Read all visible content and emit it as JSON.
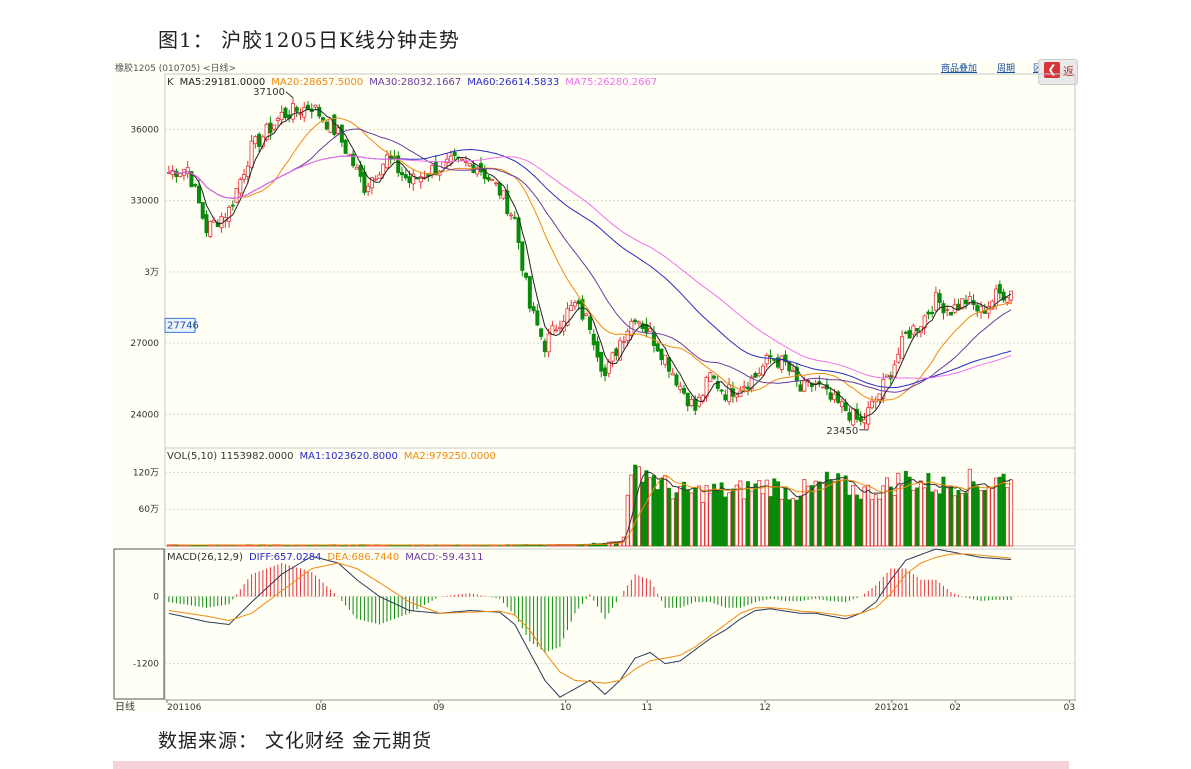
{
  "figure_title": "图1：  沪胶1205日K线分钟走势",
  "source_text": "数据来源：  文化财经    金元期货",
  "widget": {
    "symbol_label": "橡胶1205 (010705) <日线>",
    "links": [
      "商品叠加",
      "周期",
      "区"
    ],
    "back_button_label": "返",
    "price_legend": {
      "k": "K",
      "ma5": "MA5:29181.0000",
      "ma20": "MA20:28657.5000",
      "ma30": "MA30:28032.1667",
      "ma60": "MA60:26614.5833",
      "ma75": "MA75:26280.2667"
    },
    "vol_legend": {
      "vol": "VOL(5,10)  1153982.0000",
      "ma1": "MA1:1023620.8000",
      "ma2": "MA2:979250.0000"
    },
    "macd_legend": {
      "macd": "MACD(26,12,9)",
      "diff": "DIFF:657.0284",
      "dea": "DEA:686.7440",
      "macd_val": "MACD:-59.4311"
    },
    "cursor_price": "27746",
    "high_label": "37100",
    "low_label": "23450",
    "period_label": "日线",
    "colors": {
      "up": "#e8303a",
      "down": "#0a8a0a",
      "ma5": "#222222",
      "ma20": "#f08a10",
      "ma30": "#6a3aa0",
      "ma60": "#2a2ac8",
      "ma75": "#f070f0",
      "vol_ma1": "#333333",
      "vol_ma2": "#f08a10",
      "diff": "#2a3a5a",
      "dea": "#f08a10"
    }
  },
  "chart_data": [
    {
      "type": "candlestick",
      "price_ticks": [
        "36000",
        "33000",
        "3万",
        "27000",
        "24000"
      ],
      "price_tick_values": [
        36000,
        33000,
        30000,
        27000,
        24000
      ],
      "ylim": [
        23000,
        38000
      ],
      "x_labels": [
        "201106",
        "08",
        "09",
        "10",
        "11",
        "12",
        "201201",
        "02",
        "03"
      ],
      "close_path": [
        [
          0,
          34200
        ],
        [
          5,
          34400
        ],
        [
          10,
          31800
        ],
        [
          16,
          32600
        ],
        [
          22,
          35200
        ],
        [
          30,
          36600
        ],
        [
          38,
          37000
        ],
        [
          45,
          35800
        ],
        [
          52,
          33600
        ],
        [
          58,
          34800
        ],
        [
          64,
          33800
        ],
        [
          70,
          34300
        ],
        [
          76,
          34600
        ],
        [
          82,
          34500
        ],
        [
          88,
          33400
        ],
        [
          92,
          32200
        ],
        [
          96,
          28500
        ],
        [
          100,
          26900
        ],
        [
          104,
          28000
        ],
        [
          108,
          28600
        ],
        [
          112,
          27800
        ],
        [
          116,
          25600
        ],
        [
          120,
          27100
        ],
        [
          124,
          28200
        ],
        [
          128,
          27400
        ],
        [
          132,
          26400
        ],
        [
          136,
          25200
        ],
        [
          140,
          24200
        ],
        [
          144,
          25600
        ],
        [
          148,
          24900
        ],
        [
          152,
          25200
        ],
        [
          156,
          25600
        ],
        [
          160,
          26400
        ],
        [
          164,
          26100
        ],
        [
          168,
          25000
        ],
        [
          172,
          25300
        ],
        [
          176,
          24600
        ],
        [
          180,
          24200
        ],
        [
          184,
          23600
        ],
        [
          188,
          24600
        ],
        [
          192,
          25800
        ],
        [
          196,
          27300
        ],
        [
          200,
          27900
        ],
        [
          204,
          28800
        ],
        [
          208,
          28400
        ],
        [
          212,
          28800
        ],
        [
          216,
          28300
        ],
        [
          220,
          29000
        ],
        [
          224,
          29200
        ]
      ],
      "moving_averages": [
        {
          "name": "MA5",
          "period": 5
        },
        {
          "name": "MA20",
          "period": 20
        },
        {
          "name": "MA30",
          "period": 30
        },
        {
          "name": "MA60",
          "period": 60
        },
        {
          "name": "MA75",
          "period": 75
        }
      ]
    },
    {
      "type": "bar",
      "name": "volume",
      "ticks": [
        "120万",
        "60万"
      ],
      "tick_values": [
        1200000,
        600000
      ],
      "ylim": [
        0,
        1500000
      ],
      "volume_path": [
        [
          0,
          16000
        ],
        [
          100,
          17000
        ],
        [
          108,
          22000
        ],
        [
          115,
          45000
        ],
        [
          120,
          75000
        ],
        [
          121,
          170000
        ],
        [
          122,
          950000
        ],
        [
          126,
          1300000
        ],
        [
          130,
          1050000
        ],
        [
          135,
          880000
        ],
        [
          140,
          870000
        ],
        [
          145,
          900000
        ],
        [
          150,
          880000
        ],
        [
          155,
          950000
        ],
        [
          160,
          1000000
        ],
        [
          166,
          870000
        ],
        [
          170,
          920000
        ],
        [
          176,
          1050000
        ],
        [
          180,
          960000
        ],
        [
          186,
          880000
        ],
        [
          190,
          940000
        ],
        [
          196,
          1100000
        ],
        [
          200,
          1030000
        ],
        [
          206,
          980000
        ],
        [
          212,
          1060000
        ],
        [
          218,
          1000000
        ],
        [
          224,
          1150000
        ]
      ],
      "moving_averages": [
        {
          "name": "MA1",
          "period": 5
        },
        {
          "name": "MA2",
          "period": 10
        }
      ]
    },
    {
      "type": "bar",
      "name": "MACD",
      "ticks": [
        "0",
        "-1200"
      ],
      "tick_values": [
        0,
        -1200
      ],
      "ylim": [
        -1850,
        850
      ],
      "diff_path": [
        [
          0,
          -300
        ],
        [
          10,
          -450
        ],
        [
          16,
          -500
        ],
        [
          22,
          -100
        ],
        [
          30,
          400
        ],
        [
          38,
          720
        ],
        [
          45,
          600
        ],
        [
          50,
          300
        ],
        [
          56,
          0
        ],
        [
          64,
          -250
        ],
        [
          72,
          -300
        ],
        [
          80,
          -250
        ],
        [
          88,
          -280
        ],
        [
          92,
          -500
        ],
        [
          96,
          -1000
        ],
        [
          100,
          -1500
        ],
        [
          104,
          -1800
        ],
        [
          108,
          -1650
        ],
        [
          112,
          -1500
        ],
        [
          116,
          -1750
        ],
        [
          120,
          -1500
        ],
        [
          124,
          -1100
        ],
        [
          128,
          -1000
        ],
        [
          132,
          -1200
        ],
        [
          136,
          -1150
        ],
        [
          140,
          -950
        ],
        [
          144,
          -750
        ],
        [
          148,
          -600
        ],
        [
          152,
          -400
        ],
        [
          156,
          -250
        ],
        [
          160,
          -220
        ],
        [
          164,
          -260
        ],
        [
          168,
          -300
        ],
        [
          172,
          -300
        ],
        [
          176,
          -350
        ],
        [
          180,
          -400
        ],
        [
          184,
          -300
        ],
        [
          188,
          -100
        ],
        [
          192,
          300
        ],
        [
          196,
          650
        ],
        [
          200,
          750
        ],
        [
          204,
          850
        ],
        [
          208,
          800
        ],
        [
          212,
          750
        ],
        [
          216,
          700
        ],
        [
          220,
          680
        ],
        [
          224,
          660
        ]
      ],
      "dea_path": [
        [
          0,
          -250
        ],
        [
          10,
          -350
        ],
        [
          16,
          -430
        ],
        [
          22,
          -300
        ],
        [
          30,
          100
        ],
        [
          38,
          500
        ],
        [
          45,
          600
        ],
        [
          50,
          500
        ],
        [
          56,
          250
        ],
        [
          64,
          -100
        ],
        [
          72,
          -300
        ],
        [
          80,
          -280
        ],
        [
          88,
          -260
        ],
        [
          92,
          -330
        ],
        [
          96,
          -600
        ],
        [
          100,
          -1000
        ],
        [
          104,
          -1350
        ],
        [
          108,
          -1500
        ],
        [
          112,
          -1520
        ],
        [
          116,
          -1550
        ],
        [
          120,
          -1500
        ],
        [
          124,
          -1300
        ],
        [
          128,
          -1150
        ],
        [
          132,
          -1100
        ],
        [
          136,
          -1050
        ],
        [
          140,
          -900
        ],
        [
          144,
          -700
        ],
        [
          148,
          -500
        ],
        [
          152,
          -300
        ],
        [
          156,
          -200
        ],
        [
          160,
          -200
        ],
        [
          164,
          -220
        ],
        [
          168,
          -260
        ],
        [
          172,
          -280
        ],
        [
          176,
          -310
        ],
        [
          180,
          -350
        ],
        [
          184,
          -300
        ],
        [
          188,
          -200
        ],
        [
          192,
          50
        ],
        [
          196,
          400
        ],
        [
          200,
          600
        ],
        [
          204,
          700
        ],
        [
          208,
          760
        ],
        [
          212,
          760
        ],
        [
          216,
          740
        ],
        [
          220,
          710
        ],
        [
          224,
          690
        ]
      ]
    }
  ]
}
